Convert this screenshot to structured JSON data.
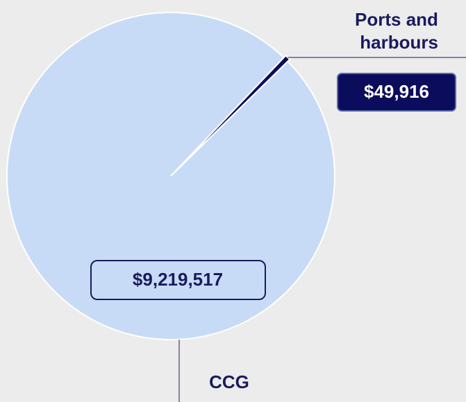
{
  "chart_data": {
    "type": "pie",
    "categories": [
      "CCG",
      "Ports and harbours"
    ],
    "values": [
      9219517,
      49916
    ],
    "value_labels": [
      "$9,219,517",
      "$49,916"
    ],
    "colors": [
      "#c8dbf6",
      "#0c0c5c"
    ]
  }
}
